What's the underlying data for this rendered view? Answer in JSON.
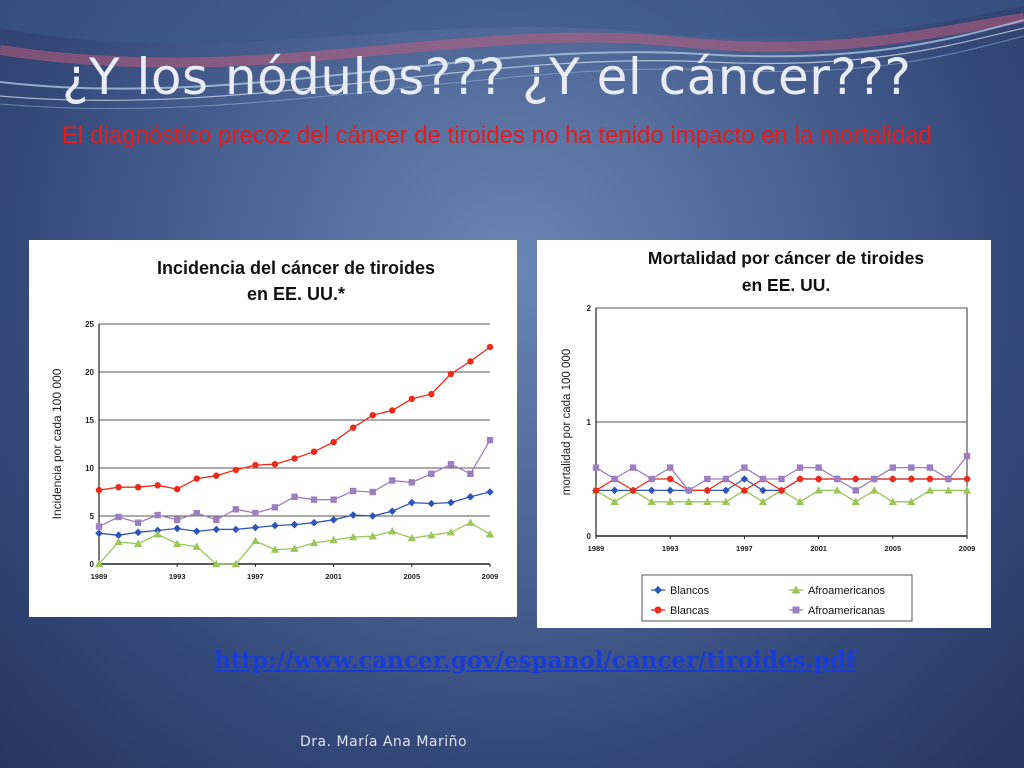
{
  "slide": {
    "title": "¿Y los nódulos??? ¿Y el cáncer???",
    "subtitle": "El diagnóstico precoz del cáncer de tiroides no ha tenido impacto en la mortalidad",
    "link": "http://www.cancer.gov/espanol/cancer/tiroides.pdf",
    "author": "Dra. María Ana Mariño"
  },
  "colors": {
    "blancos": "#2f55b6",
    "afroamericanos": "#9bc65a",
    "blancas": "#ee2a1b",
    "afroamericanas": "#9b7fc0",
    "subtitle": "#e31c1c",
    "link": "#1a3cd6"
  },
  "chart_data": [
    {
      "type": "line",
      "title": "Incidencia del cáncer de tiroides en EE. UU.*",
      "title_lines": [
        "Incidencia del cáncer de tiroides",
        "en EE. UU.*"
      ],
      "ylabel": "Incidencia por cada 100 000",
      "xlabel": "",
      "ylim": [
        0,
        25
      ],
      "yticks": [
        "0",
        "5",
        "10",
        "15",
        "20",
        "25"
      ],
      "xticks": [
        "1989",
        "1993",
        "1997",
        "2001",
        "2005",
        "2009"
      ],
      "x": [
        1989,
        1990,
        1991,
        1992,
        1993,
        1994,
        1995,
        1996,
        1997,
        1998,
        1999,
        2000,
        2001,
        2002,
        2003,
        2004,
        2005,
        2006,
        2007,
        2008,
        2009
      ],
      "grid": "horizontal",
      "series": [
        {
          "key": "blancos",
          "marker": "diamond",
          "values": [
            3.2,
            3.0,
            3.3,
            3.5,
            3.7,
            3.4,
            3.6,
            3.6,
            3.8,
            4.0,
            4.1,
            4.3,
            4.6,
            5.1,
            5.0,
            5.5,
            6.4,
            6.3,
            6.4,
            7.0,
            7.5
          ]
        },
        {
          "key": "afroamericanos",
          "marker": "triangle",
          "values": [
            0.0,
            2.3,
            2.1,
            3.1,
            2.1,
            1.8,
            0.0,
            0.0,
            2.4,
            1.5,
            1.6,
            2.2,
            2.5,
            2.8,
            2.9,
            3.4,
            2.7,
            3.0,
            3.3,
            4.3,
            3.1
          ]
        },
        {
          "key": "blancas",
          "marker": "circle",
          "values": [
            7.7,
            8.0,
            8.0,
            8.2,
            7.8,
            8.9,
            9.2,
            9.8,
            10.3,
            10.4,
            11.0,
            11.7,
            12.7,
            14.2,
            15.5,
            16.0,
            17.2,
            17.7,
            19.8,
            21.1,
            22.6
          ]
        },
        {
          "key": "afroamericanas",
          "marker": "square",
          "values": [
            3.9,
            4.9,
            4.3,
            5.1,
            4.6,
            5.3,
            4.6,
            5.7,
            5.3,
            5.9,
            7.0,
            6.7,
            6.7,
            7.6,
            7.5,
            8.7,
            8.5,
            9.4,
            10.4,
            9.4,
            12.9
          ]
        }
      ]
    },
    {
      "type": "line",
      "title": "Mortalidad por cáncer de tiroides en EE. UU.",
      "title_lines": [
        "Mortalidad por cáncer de tiroides",
        "en EE. UU."
      ],
      "ylabel": "mortalidad por cada 100 000",
      "xlabel": "",
      "ylim": [
        0,
        2
      ],
      "yticks": [
        "0",
        "1",
        "2"
      ],
      "xticks": [
        "1989",
        "1993",
        "1997",
        "2001",
        "2005",
        "2009"
      ],
      "x": [
        1989,
        1990,
        1991,
        1992,
        1993,
        1994,
        1995,
        1996,
        1997,
        1998,
        1999,
        2000,
        2001,
        2002,
        2003,
        2004,
        2005,
        2006,
        2007,
        2008,
        2009
      ],
      "grid": "horizontal",
      "legend": {
        "position": "bottom",
        "entries": [
          {
            "key": "blancos",
            "label": "Blancos"
          },
          {
            "key": "afroamericanos",
            "label": "Afroamericanos"
          },
          {
            "key": "blancas",
            "label": "Blancas"
          },
          {
            "key": "afroamericanas",
            "label": "Afroamericanas"
          }
        ]
      },
      "series": [
        {
          "key": "blancos",
          "marker": "diamond",
          "values": [
            0.4,
            0.4,
            0.4,
            0.4,
            0.4,
            0.4,
            0.4,
            0.4,
            0.5,
            0.4,
            0.4,
            0.5,
            0.5,
            0.5,
            0.5,
            0.5,
            0.5,
            0.5,
            0.5,
            0.5,
            0.5
          ]
        },
        {
          "key": "afroamericanos",
          "marker": "triangle",
          "values": [
            0.4,
            0.3,
            0.4,
            0.3,
            0.3,
            0.3,
            0.3,
            0.3,
            0.4,
            0.3,
            0.4,
            0.3,
            0.4,
            0.4,
            0.3,
            0.4,
            0.3,
            0.3,
            0.4,
            0.4,
            0.4
          ]
        },
        {
          "key": "blancas",
          "marker": "circle",
          "values": [
            0.4,
            0.5,
            0.4,
            0.5,
            0.5,
            0.4,
            0.4,
            0.5,
            0.4,
            0.5,
            0.4,
            0.5,
            0.5,
            0.5,
            0.5,
            0.5,
            0.5,
            0.5,
            0.5,
            0.5,
            0.5
          ]
        },
        {
          "key": "afroamericanas",
          "marker": "square",
          "values": [
            0.6,
            0.5,
            0.6,
            0.5,
            0.6,
            0.4,
            0.5,
            0.5,
            0.6,
            0.5,
            0.5,
            0.6,
            0.6,
            0.5,
            0.4,
            0.5,
            0.6,
            0.6,
            0.6,
            0.5,
            0.7
          ]
        }
      ]
    }
  ]
}
